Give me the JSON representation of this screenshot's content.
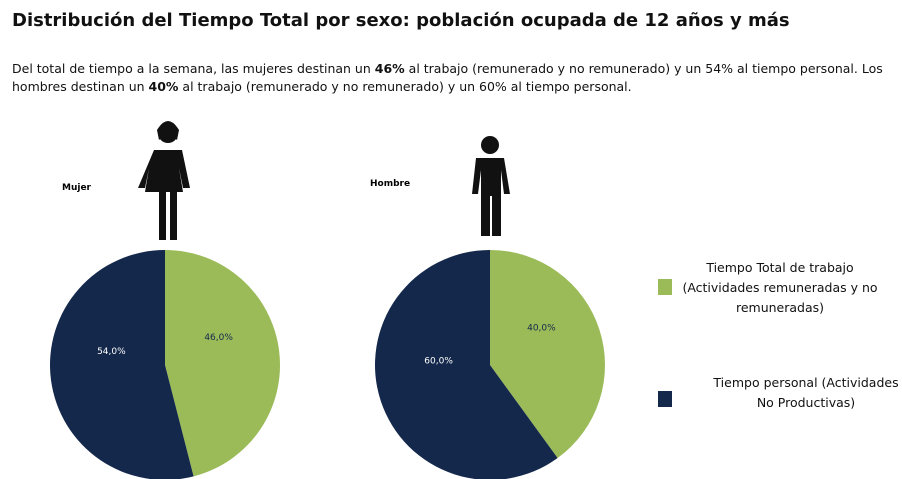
{
  "title": "Distribución del Tiempo Total por sexo: población ocupada de 12 años y más",
  "description": [
    "Del total de tiempo a la semana, las mujeres destinan un ",
    "46%",
    " al trabajo  (remunerado y no remunerado) y un 54% al tiempo personal. Los hombres destinan un ",
    "40%",
    " al trabajo (remunerado y no remunerado) y un 60% al tiempo personal."
  ],
  "legend": {
    "entries": [
      {
        "label": "Tiempo Total de trabajo (Actividades remuneradas y no remuneradas)",
        "color": "#9bbb59"
      },
      {
        "label": "Tiempo personal (Actividades No Productivas)",
        "color": "#14284b"
      }
    ]
  },
  "chart_data": [
    {
      "type": "pie",
      "title": "Mujer",
      "values": [
        46,
        54
      ],
      "value_labels": [
        "46,0%",
        "54,0%"
      ]
    },
    {
      "type": "pie",
      "title": "Hombre",
      "values": [
        40,
        60
      ],
      "value_labels": [
        "40,0%",
        "60,0%"
      ]
    }
  ]
}
